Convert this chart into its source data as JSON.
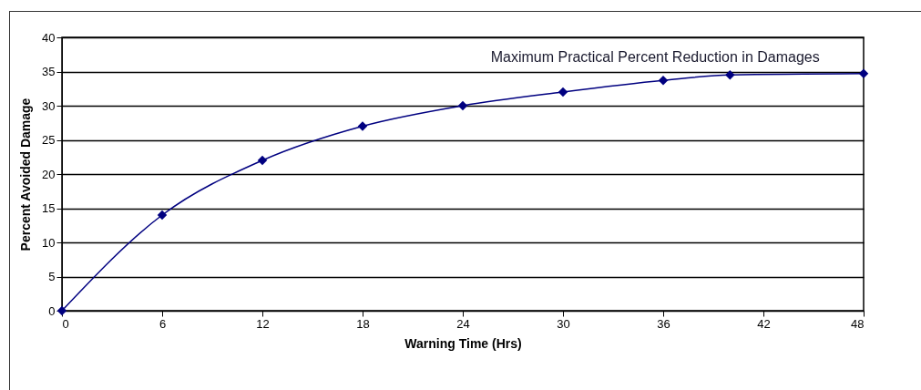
{
  "chart_data": {
    "type": "line",
    "xlabel": "Warning Time (Hrs)",
    "ylabel": "Percent Avoided Damage",
    "x": [
      0,
      6,
      12,
      18,
      24,
      30,
      36,
      40,
      48
    ],
    "series": [
      {
        "color": "#000080",
        "values": [
          0,
          14,
          22,
          27,
          30,
          32,
          33.7,
          34.5,
          34.7
        ]
      }
    ],
    "xlim": [
      0,
      48
    ],
    "xticks": [
      0,
      6,
      12,
      18,
      24,
      30,
      36,
      42,
      48
    ],
    "ylim": [
      0,
      40
    ],
    "yticks": [
      0,
      5,
      10,
      15,
      20,
      25,
      30,
      35,
      40
    ],
    "grid": "y",
    "marker": "diamond",
    "line_style": "solid",
    "annotations": [
      "Maximum Practical Percent Reduction in Damages"
    ]
  }
}
